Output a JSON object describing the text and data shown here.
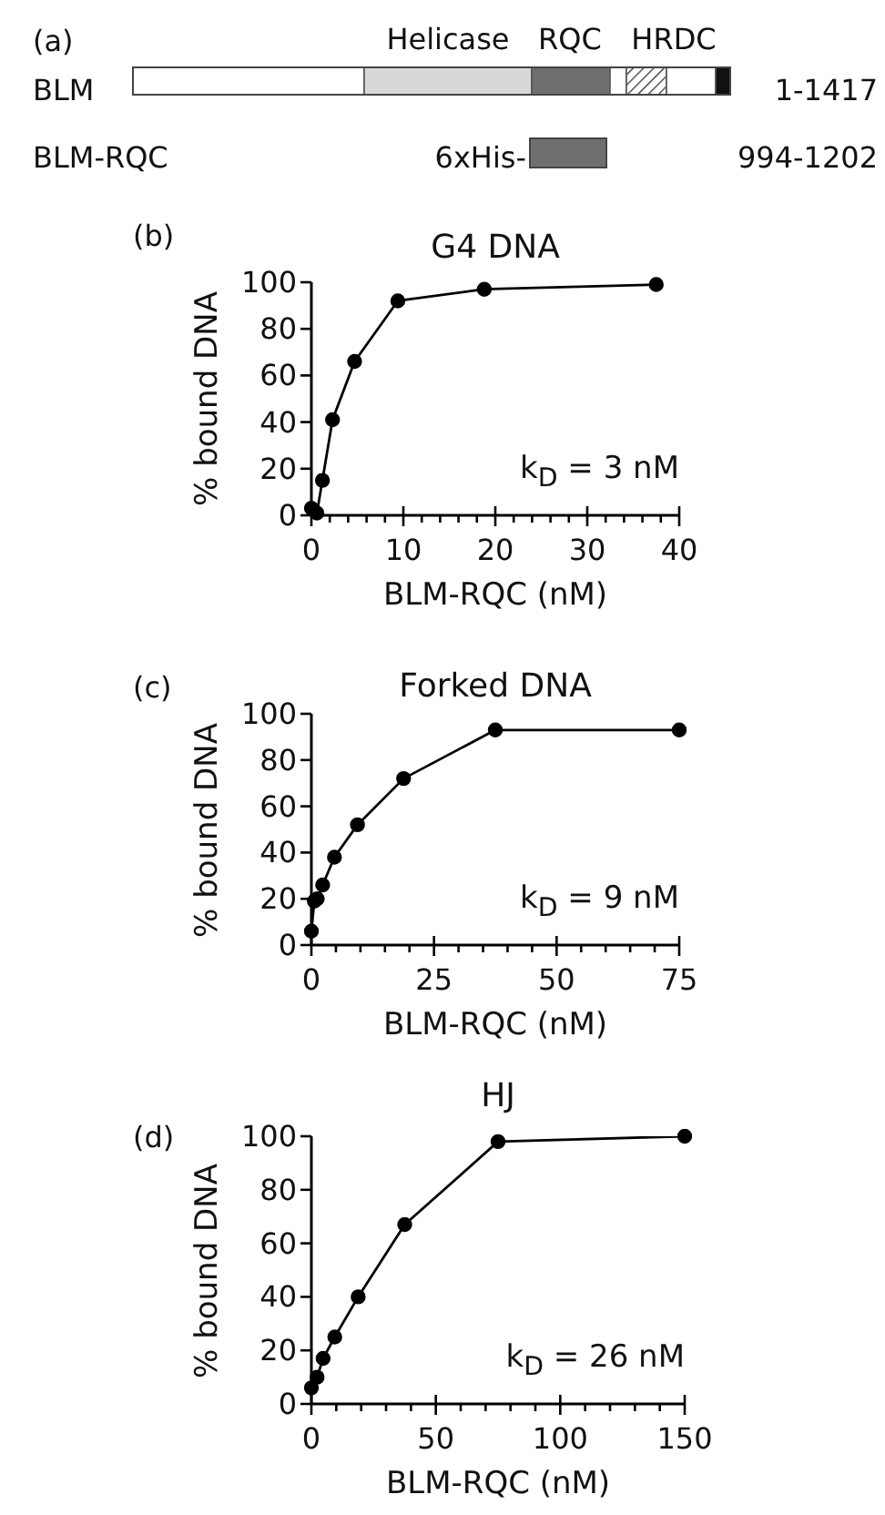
{
  "chart_data": [
    {
      "type": "other",
      "annotations": [
        "(a)",
        "Helicase",
        "RQC",
        "HRDC",
        "BLM",
        "1-1417",
        "BLM-RQC",
        "6xHis-",
        "994-1202"
      ]
    },
    {
      "type": "line",
      "title": "G4 DNA",
      "xlabel": "BLM-RQC (nM)",
      "ylabel": "% bound DNA",
      "annotations": [
        "(b)",
        "k$_{D}$ = 3 nM"
      ],
      "x": [
        0,
        0.6,
        1.2,
        2.3,
        4.7,
        9.4,
        18.8,
        37.5
      ],
      "values": [
        3,
        1,
        15,
        41,
        66,
        92,
        97,
        99
      ],
      "color": "#000000",
      "marker": "circle",
      "line_style": "solid",
      "xlim": [
        0,
        40
      ],
      "xticks": [
        0,
        {
          "value": 2,
          "label": null
        },
        {
          "value": 4,
          "label": null
        },
        {
          "value": 6,
          "label": null
        },
        {
          "value": 8,
          "label": null
        },
        10,
        {
          "value": 12,
          "label": null
        },
        {
          "value": 14,
          "label": null
        },
        {
          "value": 16,
          "label": null
        },
        {
          "value": 18,
          "label": null
        },
        20,
        {
          "value": 22,
          "label": null
        },
        {
          "value": 24,
          "label": null
        },
        {
          "value": 26,
          "label": null
        },
        {
          "value": 28,
          "label": null
        },
        30,
        {
          "value": 32,
          "label": null
        },
        {
          "value": 34,
          "label": null
        },
        {
          "value": 36,
          "label": null
        },
        {
          "value": 38,
          "label": null
        },
        40
      ],
      "ylim": [
        0,
        100
      ],
      "yticks": [
        0,
        20,
        40,
        60,
        80,
        100
      ]
    },
    {
      "type": "line",
      "title": "Forked DNA",
      "xlabel": "BLM-RQC (nM)",
      "ylabel": "% bound DNA",
      "annotations": [
        "(c)",
        "k$_{D}$ = 9 nM"
      ],
      "x": [
        0,
        0.6,
        1.2,
        2.3,
        4.7,
        9.4,
        18.8,
        37.5,
        75
      ],
      "values": [
        6,
        19,
        20,
        26,
        38,
        52,
        72,
        93,
        93
      ],
      "color": "#000000",
      "marker": "circle",
      "line_style": "solid",
      "xlim": [
        0,
        75
      ],
      "xticks": [
        0,
        {
          "value": 5,
          "label": null
        },
        {
          "value": 10,
          "label": null
        },
        {
          "value": 15,
          "label": null
        },
        {
          "value": 20,
          "label": null
        },
        25,
        {
          "value": 30,
          "label": null
        },
        {
          "value": 35,
          "label": null
        },
        {
          "value": 40,
          "label": null
        },
        {
          "value": 45,
          "label": null
        },
        50,
        {
          "value": 55,
          "label": null
        },
        {
          "value": 60,
          "label": null
        },
        {
          "value": 65,
          "label": null
        },
        {
          "value": 70,
          "label": null
        },
        75
      ],
      "ylim": [
        0,
        100
      ],
      "yticks": [
        0,
        20,
        40,
        60,
        80,
        100
      ]
    },
    {
      "type": "line",
      "title": "HJ",
      "xlabel": "BLM-RQC (nM)",
      "ylabel": "% bound DNA",
      "annotations": [
        "(d)",
        "k$_{D}$ = 26 nM"
      ],
      "x": [
        0,
        2.3,
        4.7,
        9.4,
        18.8,
        37.5,
        75,
        150
      ],
      "values": [
        6,
        10,
        17,
        25,
        40,
        67,
        98,
        100
      ],
      "color": "#000000",
      "marker": "circle",
      "line_style": "solid",
      "xlim": [
        0,
        150
      ],
      "xticks": [
        0,
        {
          "value": 10,
          "label": null
        },
        {
          "value": 20,
          "label": null
        },
        {
          "value": 30,
          "label": null
        },
        {
          "value": 40,
          "label": null
        },
        50,
        {
          "value": 60,
          "label": null
        },
        {
          "value": 70,
          "label": null
        },
        {
          "value": 80,
          "label": null
        },
        {
          "value": 90,
          "label": null
        },
        100,
        {
          "value": 110,
          "label": null
        },
        {
          "value": 120,
          "label": null
        },
        {
          "value": 130,
          "label": null
        },
        {
          "value": 140,
          "label": null
        },
        150
      ],
      "ylim": [
        0,
        100
      ],
      "yticks": [
        0,
        20,
        40,
        60,
        80,
        100
      ]
    }
  ]
}
